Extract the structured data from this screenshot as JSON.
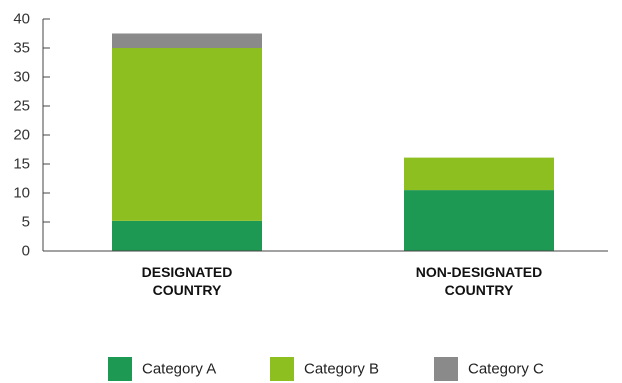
{
  "chart_data": {
    "type": "bar",
    "stacked": true,
    "categories": [
      [
        "DESIGNATED",
        "COUNTRY"
      ],
      [
        "NON-DESIGNATED",
        "COUNTRY"
      ]
    ],
    "series": [
      {
        "name": "Category A",
        "values": [
          5.2,
          10.5
        ],
        "color": "#1e9954"
      },
      {
        "name": "Category B",
        "values": [
          29.8,
          5.6
        ],
        "color": "#8dbf21"
      },
      {
        "name": "Category C",
        "values": [
          2.5,
          0
        ],
        "color": "#8a8a8a"
      }
    ],
    "yticks": [
      0,
      5,
      10,
      15,
      20,
      25,
      30,
      35,
      40
    ],
    "ylim": [
      0,
      40
    ],
    "grid": false,
    "legend": "bottom"
  }
}
